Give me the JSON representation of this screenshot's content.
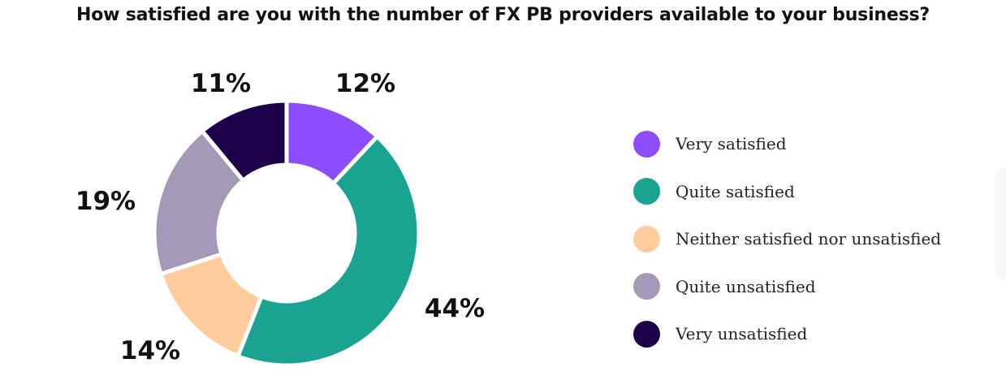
{
  "chart_data": {
    "type": "pie",
    "donut": true,
    "title": "How satisfied are you with the number of FX PB providers available to your business?",
    "categories": [
      "Very satisfied",
      "Quite satisfied",
      "Neither satisfied nor unsatisfied",
      "Quite unsatisfied",
      "Very unsatisfied"
    ],
    "values": [
      12,
      44,
      14,
      19,
      11
    ],
    "labels": [
      "12%",
      "44%",
      "14%",
      "19%",
      "11%"
    ],
    "colors": [
      "#8C4DFF",
      "#1AA390",
      "#FFCC9E",
      "#A499B6",
      "#1D0049"
    ],
    "legend_position": "right"
  }
}
